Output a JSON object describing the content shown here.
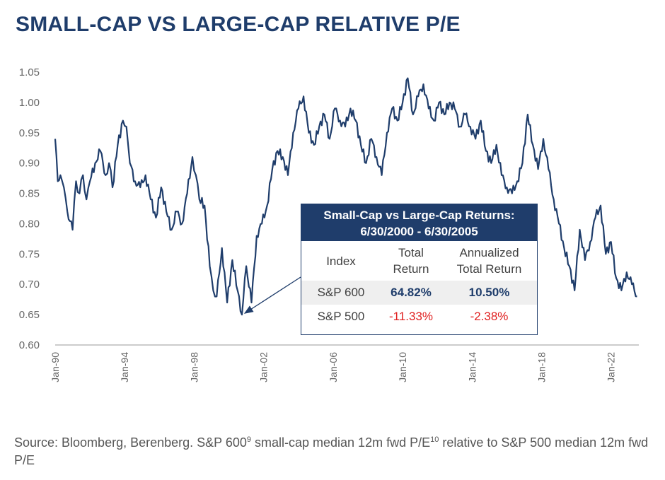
{
  "title": "SMALL-CAP VS LARGE-CAP RELATIVE P/E",
  "chart_data": {
    "type": "line",
    "title": "SMALL-CAP VS LARGE-CAP RELATIVE P/E",
    "xlabel": "",
    "ylabel": "",
    "ylim": [
      0.6,
      1.05
    ],
    "yticks": [
      "0.60",
      "0.65",
      "0.70",
      "0.75",
      "0.80",
      "0.85",
      "0.90",
      "0.95",
      "1.00",
      "1.05"
    ],
    "xticks": [
      {
        "label": "Jan-90",
        "year": 1990
      },
      {
        "label": "Jan-94",
        "year": 1994
      },
      {
        "label": "Jan-98",
        "year": 1998
      },
      {
        "label": "Jan-02",
        "year": 2002
      },
      {
        "label": "Jan-06",
        "year": 2006
      },
      {
        "label": "Jan-10",
        "year": 2010
      },
      {
        "label": "Jan-14",
        "year": 2014
      },
      {
        "label": "Jan-18",
        "year": 2018
      },
      {
        "label": "Jan-22",
        "year": 2022
      }
    ],
    "grid": false,
    "color": "#1f3d6b",
    "series": [
      {
        "x": [
          1990.0,
          1990.15,
          1990.3,
          1990.5,
          1990.7,
          1991.0,
          1991.2,
          1991.4,
          1991.6,
          1991.8,
          1992.0,
          1992.3,
          1992.6,
          1992.9,
          1993.1,
          1993.3,
          1993.6,
          1993.9,
          1994.1,
          1994.3,
          1994.6,
          1994.9,
          1995.2,
          1995.5,
          1995.8,
          1996.1,
          1996.4,
          1996.7,
          1997.0,
          1997.3,
          1997.6,
          1997.9,
          1998.1,
          1998.3,
          1998.6,
          1998.9,
          1999.1,
          1999.3,
          1999.6,
          1999.9,
          2000.2,
          2000.5,
          2000.75,
          2001.0,
          2001.3,
          2001.6,
          2001.9,
          2002.2,
          2002.5,
          2002.8,
          2003.1,
          2003.4,
          2003.7,
          2004.0,
          2004.3,
          2004.6,
          2004.9,
          2005.2,
          2005.5,
          2005.8,
          2006.1,
          2006.4,
          2006.7,
          2007.0,
          2007.3,
          2007.6,
          2007.9,
          2008.2,
          2008.5,
          2008.8,
          2009.1,
          2009.4,
          2009.7,
          2010.0,
          2010.3,
          2010.6,
          2010.9,
          2011.2,
          2011.5,
          2011.8,
          2012.1,
          2012.4,
          2012.7,
          2013.0,
          2013.3,
          2013.6,
          2013.9,
          2014.2,
          2014.5,
          2014.8,
          2015.1,
          2015.4,
          2015.7,
          2016.0,
          2016.3,
          2016.6,
          2016.9,
          2017.2,
          2017.5,
          2017.8,
          2018.1,
          2018.4,
          2018.7,
          2019.0,
          2019.3,
          2019.6,
          2019.9,
          2020.2,
          2020.5,
          2020.8,
          2021.1,
          2021.4,
          2021.7,
          2022.0,
          2022.3,
          2022.6,
          2022.9,
          2023.2,
          2023.5
        ],
        "values": [
          0.94,
          0.87,
          0.88,
          0.86,
          0.82,
          0.79,
          0.87,
          0.85,
          0.88,
          0.84,
          0.87,
          0.9,
          0.92,
          0.88,
          0.9,
          0.86,
          0.93,
          0.97,
          0.96,
          0.9,
          0.87,
          0.86,
          0.88,
          0.84,
          0.81,
          0.86,
          0.82,
          0.79,
          0.82,
          0.8,
          0.85,
          0.91,
          0.88,
          0.84,
          0.83,
          0.73,
          0.69,
          0.68,
          0.76,
          0.67,
          0.74,
          0.69,
          0.65,
          0.73,
          0.67,
          0.78,
          0.8,
          0.83,
          0.89,
          0.92,
          0.91,
          0.88,
          0.95,
          0.99,
          1.01,
          0.95,
          0.93,
          0.96,
          0.98,
          0.94,
          0.99,
          0.97,
          0.96,
          0.99,
          0.97,
          0.93,
          0.9,
          0.94,
          0.91,
          0.88,
          0.95,
          0.99,
          0.97,
          1.0,
          1.04,
          0.98,
          1.01,
          1.03,
          0.99,
          0.97,
          1.0,
          0.98,
          1.0,
          0.99,
          0.96,
          0.98,
          0.96,
          0.94,
          0.97,
          0.92,
          0.9,
          0.93,
          0.88,
          0.86,
          0.85,
          0.87,
          0.9,
          0.98,
          0.93,
          0.89,
          0.94,
          0.89,
          0.84,
          0.8,
          0.76,
          0.73,
          0.69,
          0.79,
          0.74,
          0.77,
          0.81,
          0.83,
          0.75,
          0.77,
          0.71,
          0.69,
          0.72,
          0.7,
          0.68
        ]
      }
    ],
    "annotation": {
      "target_year": 2000.75,
      "target_value": 0.65
    }
  },
  "inset": {
    "heading_line1": "Small-Cap vs Large-Cap Returns:",
    "heading_line2": "6/30/2000 - 6/30/2005",
    "columns": [
      "Index",
      "Total\nReturn",
      "Annualized\nTotal Return"
    ],
    "rows": [
      {
        "index": "S&P 600",
        "total": "64.82%",
        "annualized": "10.50%"
      },
      {
        "index": "S&P 500",
        "total": "-11.33%",
        "annualized": "-2.38%"
      }
    ]
  },
  "source": {
    "part1": "Source: Bloomberg, Berenberg. S&P 600",
    "sup1": "9",
    "part2": " small-cap median 12m fwd P/E",
    "sup2": "10",
    "part3": " relative to S&P 500 median 12m fwd P/E"
  }
}
